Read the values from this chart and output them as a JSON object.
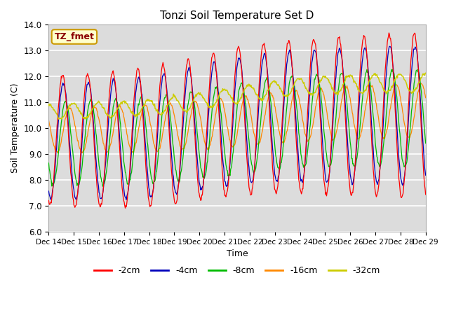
{
  "title": "Tonzi Soil Temperature Set D",
  "xlabel": "Time",
  "ylabel": "Soil Temperature (C)",
  "ylim": [
    6.0,
    14.0
  ],
  "yticks": [
    6.0,
    7.0,
    8.0,
    9.0,
    10.0,
    11.0,
    12.0,
    13.0,
    14.0
  ],
  "plot_bg_color": "#dcdcdc",
  "fig_bg_color": "#ffffff",
  "grid_color": "#ffffff",
  "legend_label": "TZ_fmet",
  "series_labels": [
    "-2cm",
    "-4cm",
    "-8cm",
    "-16cm",
    "-32cm"
  ],
  "series_colors": [
    "#ff0000",
    "#0000bb",
    "#00bb00",
    "#ff8800",
    "#cccc00"
  ],
  "n_days": 15,
  "start_day": 14,
  "pts_per_day": 48
}
